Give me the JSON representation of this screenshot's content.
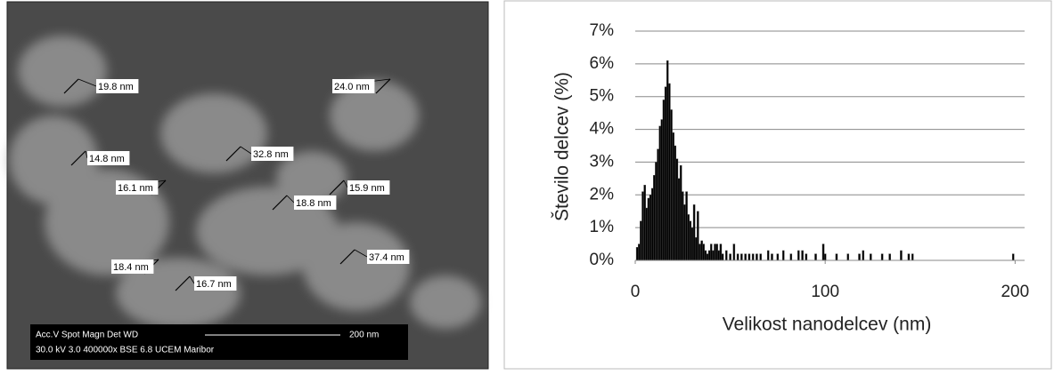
{
  "image": {
    "measurements": [
      "19.8 nm",
      "24.0 nm",
      "32.8 nm",
      "14.8 nm",
      "16.1 nm",
      "15.9 nm",
      "18.8 nm",
      "37.4 nm",
      "18.4 nm",
      "16.7 nm"
    ],
    "info_header": "Acc.V  Spot Magn   Det  WD",
    "info_values": "30.0 kV 3.0   400000x BSE 6.8   UCEM Maribor",
    "scale_label": "200 nm"
  },
  "chart_data": {
    "type": "bar",
    "x_label": "Velikost nanodelcev (nm)",
    "y_label": "Število delcev (%)",
    "x": [
      1,
      2,
      3,
      4,
      5,
      6,
      7,
      8,
      9,
      10,
      11,
      12,
      13,
      14,
      15,
      16,
      17,
      18,
      19,
      20,
      21,
      22,
      23,
      24,
      25,
      26,
      27,
      28,
      29,
      30,
      31,
      32,
      33,
      34,
      35,
      36,
      37,
      38,
      39,
      40,
      41,
      42,
      43,
      44,
      45,
      46,
      48,
      50,
      52,
      54,
      56,
      58,
      60,
      62,
      64,
      66,
      70,
      72,
      75,
      78,
      82,
      86,
      88,
      90,
      95,
      99,
      100,
      106,
      112,
      118,
      120,
      124,
      130,
      134,
      140,
      144,
      146,
      199
    ],
    "values": [
      0.4,
      0.5,
      1.2,
      2.1,
      2.3,
      1.6,
      1.9,
      2.0,
      2.2,
      2.6,
      3.0,
      3.4,
      4.1,
      4.3,
      4.9,
      5.3,
      6.1,
      5.4,
      4.6,
      3.9,
      3.5,
      3.1,
      2.5,
      2.9,
      2.1,
      1.7,
      2.1,
      1.4,
      1.2,
      1.0,
      1.7,
      0.7,
      1.5,
      0.5,
      0.6,
      0.5,
      0.3,
      0.2,
      0.3,
      0.5,
      0.3,
      0.5,
      0.5,
      0.3,
      0.5,
      0.2,
      0.3,
      0.2,
      0.5,
      0.2,
      0.2,
      0.2,
      0.2,
      0.2,
      0.2,
      0.2,
      0.3,
      0.2,
      0.2,
      0.3,
      0.2,
      0.3,
      0.3,
      0.2,
      0.2,
      0.5,
      0.2,
      0.2,
      0.2,
      0.2,
      0.3,
      0.2,
      0.2,
      0.2,
      0.3,
      0.2,
      0.2,
      0.2
    ],
    "color": "#000000",
    "xlim": [
      0,
      205
    ],
    "xticks": [
      0,
      100,
      200
    ],
    "ylim": [
      0,
      7
    ],
    "yticks": [
      {
        "value": 0,
        "label": "0%"
      },
      {
        "value": 1,
        "label": "1%"
      },
      {
        "value": 2,
        "label": "2%"
      },
      {
        "value": 3,
        "label": "3%"
      },
      {
        "value": 4,
        "label": "4%"
      },
      {
        "value": 5,
        "label": "5%"
      },
      {
        "value": 6,
        "label": "6%"
      },
      {
        "value": 7,
        "label": "7%"
      }
    ],
    "grid": true
  }
}
